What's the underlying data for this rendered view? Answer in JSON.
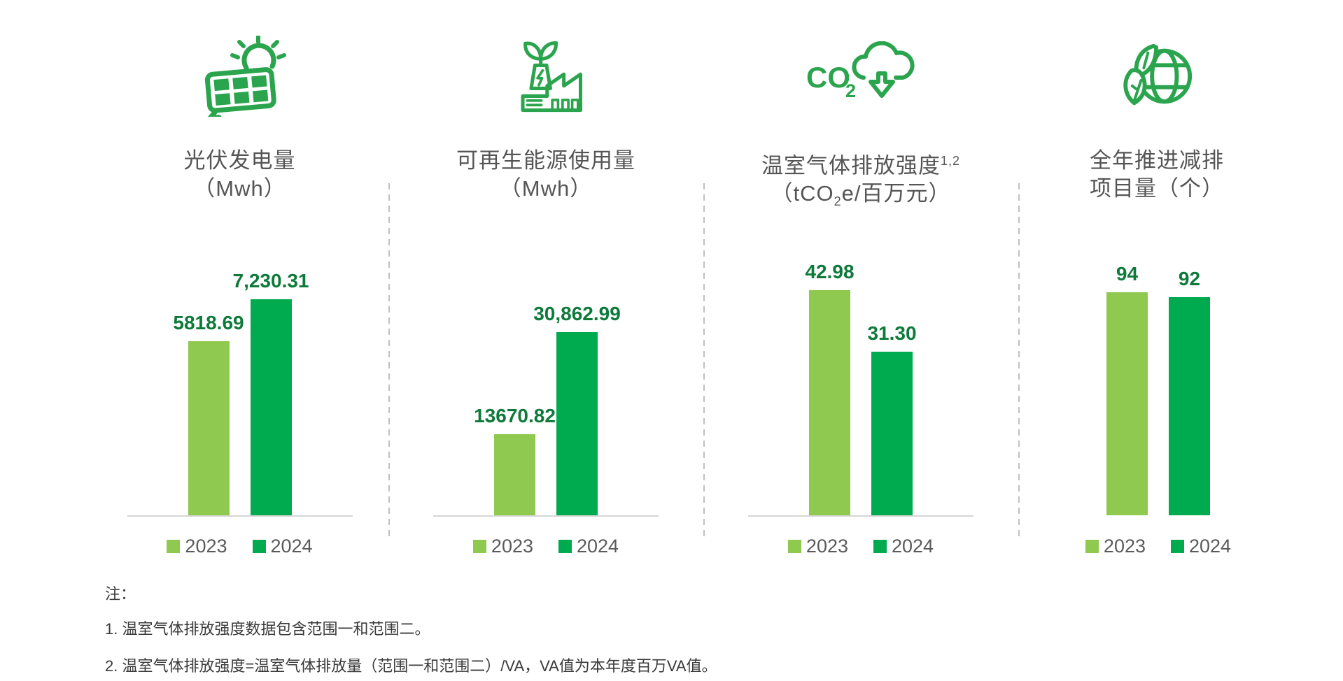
{
  "page": {
    "background": "#FFFFFF"
  },
  "colors": {
    "bar_2023_light_green": "#90C950",
    "bar_2024_dark_green": "#00AB4F",
    "value_label_green": "#0E7A3A",
    "title_gray": "#555555",
    "legend_gray": "#5A5A5A",
    "note_gray": "#3A3A3A",
    "axis_gray": "#D6D6D6",
    "divider_gray": "#C0C0C0",
    "icon_green": "#2BA44E"
  },
  "legend": {
    "y2023": "2023",
    "y2024": "2024"
  },
  "panels": [
    {
      "icon": "solar-panel-icon",
      "title_line1": "光伏发电量",
      "title_line2": "（Mwh）",
      "labels": {
        "v2023": "5818.69",
        "v2024": "7,230.31"
      }
    },
    {
      "icon": "green-factory-icon",
      "title_line1": "可再生能源使用量",
      "title_line2": "（Mwh）",
      "labels": {
        "v2023": "13670.82",
        "v2024": "30,862.99"
      }
    },
    {
      "icon": "co2-reduction-icon",
      "title_line1": "温室气体排放强度",
      "title_sup": "1,2",
      "title_l2_pre": "（tCO",
      "title_l2_sub": "2",
      "title_l2_post": "e/百万元）",
      "labels": {
        "v2023": "42.98",
        "v2024": "31.30"
      }
    },
    {
      "icon": "globe-leaf-icon",
      "title_line1": "全年推进减排",
      "title_line2": "项目量（个）",
      "labels": {
        "v2023": "94",
        "v2024": "92"
      }
    }
  ],
  "notes": {
    "heading": "注：",
    "items": [
      "1. 温室气体排放强度数据包含范围一和范围二。",
      "2. 温室气体排放强度=温室气体排放量（范围一和范围二）/VA，VA值为本年度百万VA值。"
    ]
  },
  "chart_data": [
    {
      "type": "bar",
      "title": "光伏发电量（Mwh）",
      "categories": [
        "2023",
        "2024"
      ],
      "values": [
        5818.69,
        7230.31
      ],
      "value_labels": [
        "5818.69",
        "7,230.31"
      ],
      "series_colors": [
        "#90C950",
        "#00AB4F"
      ],
      "legend_position": "bottom",
      "grid": false
    },
    {
      "type": "bar",
      "title": "可再生能源使用量（Mwh）",
      "categories": [
        "2023",
        "2024"
      ],
      "values": [
        13670.82,
        30862.99
      ],
      "value_labels": [
        "13670.82",
        "30,862.99"
      ],
      "series_colors": [
        "#90C950",
        "#00AB4F"
      ],
      "legend_position": "bottom",
      "grid": false
    },
    {
      "type": "bar",
      "title": "温室气体排放强度（tCO2e/百万元）",
      "categories": [
        "2023",
        "2024"
      ],
      "values": [
        42.98,
        31.3
      ],
      "value_labels": [
        "42.98",
        "31.30"
      ],
      "series_colors": [
        "#90C950",
        "#00AB4F"
      ],
      "legend_position": "bottom",
      "grid": false
    },
    {
      "type": "bar",
      "title": "全年推进减排项目量（个）",
      "categories": [
        "2023",
        "2024"
      ],
      "values": [
        94,
        92
      ],
      "value_labels": [
        "94",
        "92"
      ],
      "series_colors": [
        "#90C950",
        "#00AB4F"
      ],
      "legend_position": "bottom",
      "grid": false
    }
  ]
}
